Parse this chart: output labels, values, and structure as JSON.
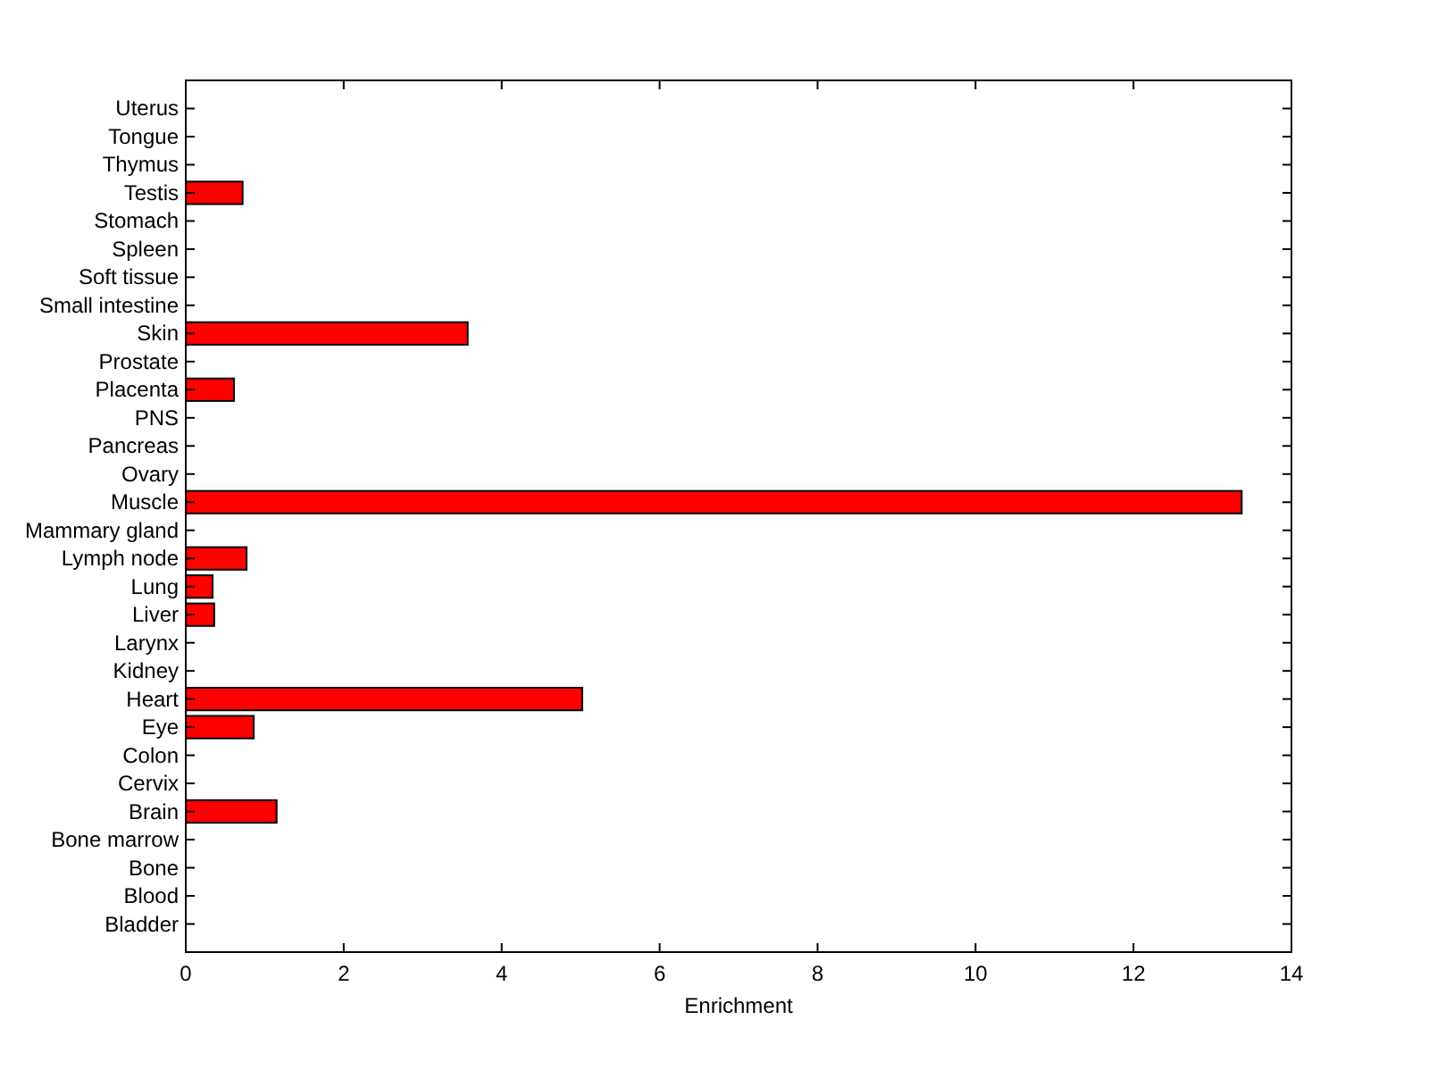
{
  "chart_data": {
    "type": "bar",
    "orientation": "horizontal",
    "xlabel": "Enrichment",
    "categories": [
      "Uterus",
      "Tongue",
      "Thymus",
      "Testis",
      "Stomach",
      "Spleen",
      "Soft tissue",
      "Small intestine",
      "Skin",
      "Prostate",
      "Placenta",
      "PNS",
      "Pancreas",
      "Ovary",
      "Muscle",
      "Mammary gland",
      "Lymph node",
      "Lung",
      "Liver",
      "Larynx",
      "Kidney",
      "Heart",
      "Eye",
      "Colon",
      "Cervix",
      "Brain",
      "Bone marrow",
      "Bone",
      "Blood",
      "Bladder"
    ],
    "values": [
      0,
      0,
      0,
      0.72,
      0,
      0,
      0,
      0,
      3.57,
      0,
      0.61,
      0,
      0,
      0,
      13.37,
      0,
      0.77,
      0.34,
      0.36,
      0,
      0,
      5.02,
      0.86,
      0,
      0,
      1.15,
      0,
      0,
      0,
      0
    ],
    "color": "#ff0000",
    "xlim": [
      0,
      14
    ],
    "xticks": [
      0,
      2,
      4,
      6,
      8,
      10,
      12,
      14
    ]
  }
}
